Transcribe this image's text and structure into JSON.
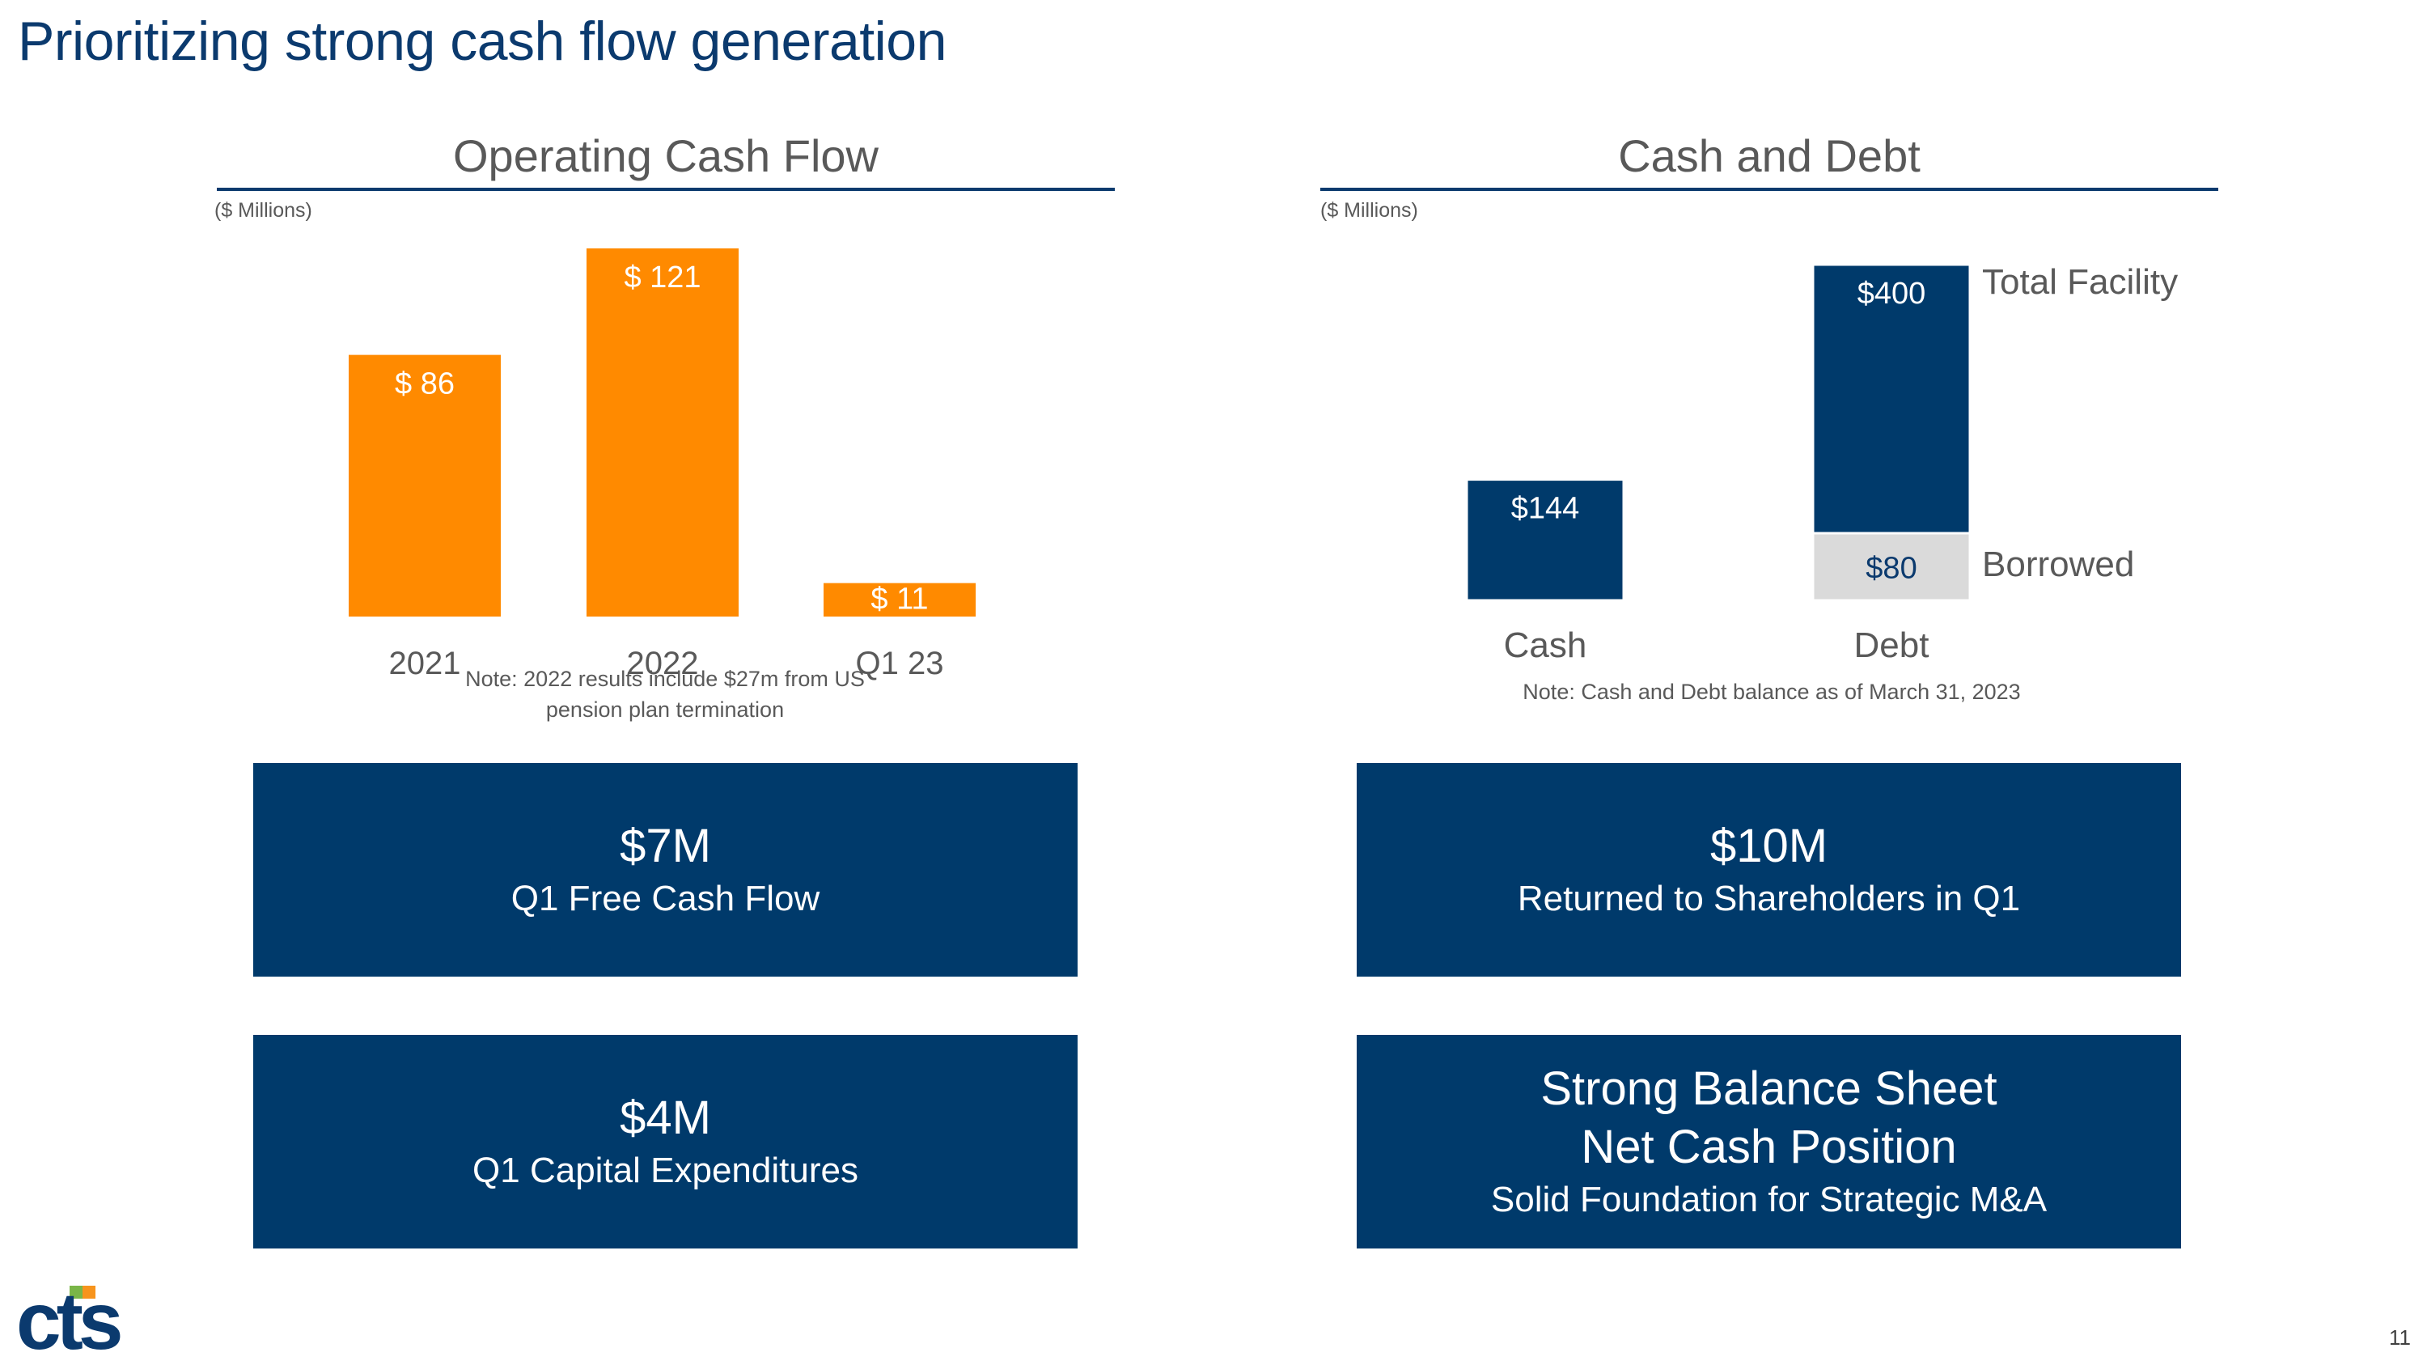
{
  "page": {
    "title": "Prioritizing strong cash flow generation",
    "page_number": "11",
    "logo_text": "cts",
    "colors": {
      "navy": "#003a6b",
      "orange": "#ff8a00",
      "gray_bar": "#dadada",
      "logo_green": "#7ab648",
      "logo_orange": "#f7941d"
    }
  },
  "left_panel": {
    "title": "Operating Cash Flow",
    "units": "($ Millions)",
    "note": "Note: 2022 results include $27m from US pension plan termination"
  },
  "right_panel": {
    "title": "Cash and Debt",
    "units": "($ Millions)",
    "note": "Note: Cash and Debt balance as of March 31, 2023"
  },
  "chart_data": [
    {
      "type": "bar",
      "title": "Operating Cash Flow",
      "categories": [
        "2021",
        "2022",
        "Q1 23"
      ],
      "values": [
        86,
        121,
        11
      ],
      "labels": [
        "$ 86",
        "$ 121",
        "$ 11"
      ],
      "color": "#ff8a00",
      "ylim": [
        0,
        121
      ],
      "grid": false
    },
    {
      "type": "bar",
      "title": "Cash and Debt",
      "categories": [
        "Cash",
        "Debt"
      ],
      "series": [
        {
          "name": "",
          "values": [
            144,
            0
          ],
          "labels": [
            "$144",
            ""
          ],
          "color": "#003a6b"
        },
        {
          "name": "Borrowed",
          "values": [
            0,
            80
          ],
          "labels": [
            "",
            "$80"
          ],
          "color": "#dadada"
        },
        {
          "name": "Total Facility",
          "values": [
            0,
            320
          ],
          "labels": [
            "",
            "$400"
          ],
          "color": "#003a6b"
        }
      ],
      "stacked": true,
      "side_labels": [
        "Total Facility",
        "Borrowed"
      ],
      "ylim": [
        0,
        400
      ],
      "grid": false
    }
  ],
  "kpis": [
    {
      "value": "$7M",
      "label": "Q1 Free Cash Flow"
    },
    {
      "value": "$10M",
      "label": "Returned to Shareholders in Q1"
    },
    {
      "value": "$4M",
      "label": "Q1 Capital Expenditures"
    },
    {
      "line1": "Strong Balance Sheet",
      "line2": "Net Cash Position",
      "label": "Solid Foundation for Strategic M&A"
    }
  ]
}
